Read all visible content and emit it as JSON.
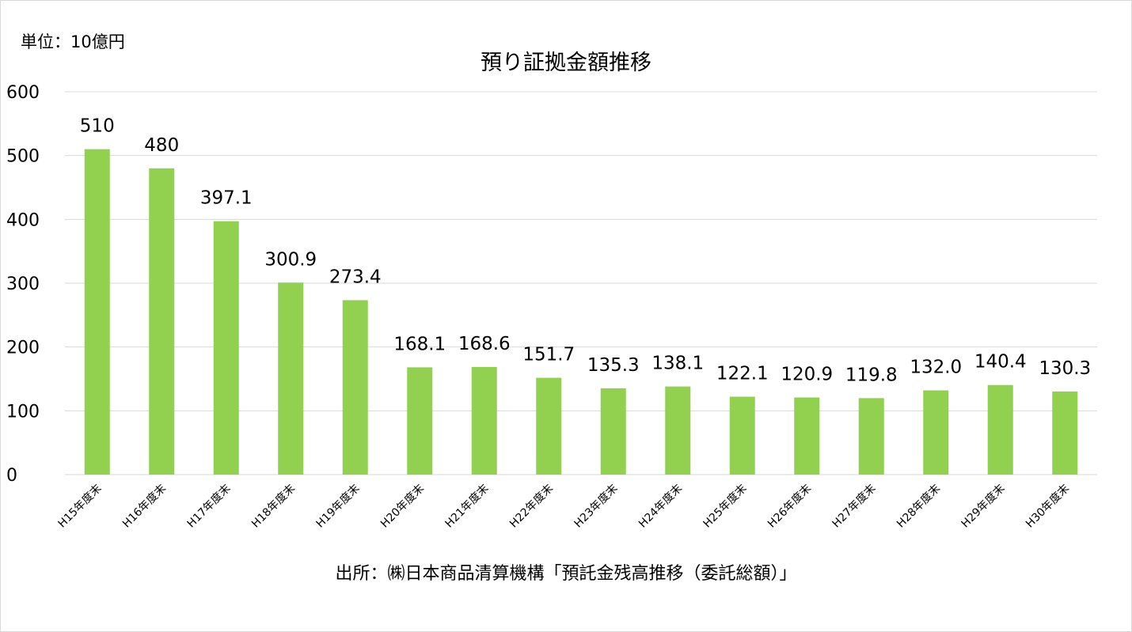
{
  "unit_label": "単位：10億円",
  "source": "出所：㈱日本商品清算機構「預託金残高推移（委託総額）」",
  "colors": {
    "bar": "#92d050",
    "grid": "#d9d9d9"
  },
  "chart_data": {
    "type": "bar",
    "title": "預り証拠金額推移",
    "xlabel": "",
    "ylabel": "",
    "ylim": [
      0,
      600
    ],
    "yticks": [
      0,
      100,
      200,
      300,
      400,
      500,
      600
    ],
    "grid": true,
    "categories": [
      "H15年度末",
      "H16年度末",
      "H17年度末",
      "H18年度末",
      "H19年度末",
      "H20年度末",
      "H21年度末",
      "H22年度末",
      "H23年度末",
      "H24年度末",
      "H25年度末",
      "H26年度末",
      "H27年度末",
      "H28年度末",
      "H29年度末",
      "H30年度末"
    ],
    "values": [
      510,
      480,
      397.1,
      300.9,
      273.4,
      168.1,
      168.6,
      151.7,
      135.3,
      138.1,
      122.1,
      120.9,
      119.8,
      132.0,
      140.4,
      130.3
    ],
    "data_labels": [
      "510",
      "480",
      "397.1",
      "300.9",
      "273.4",
      "168.1",
      "168.6",
      "151.7",
      "135.3",
      "138.1",
      "122.1",
      "120.9",
      "119.8",
      "132.0",
      "140.4",
      "130.3"
    ]
  }
}
